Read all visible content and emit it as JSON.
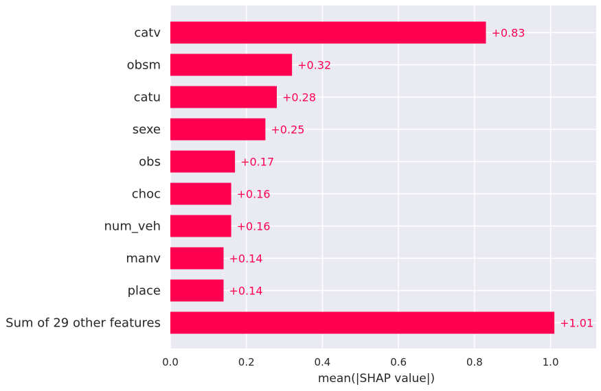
{
  "chart_data": {
    "type": "bar",
    "orientation": "horizontal",
    "categories": [
      "catv",
      "obsm",
      "catu",
      "sexe",
      "obs",
      "choc",
      "num_veh",
      "manv",
      "place",
      "Sum of 29 other features"
    ],
    "values": [
      0.83,
      0.32,
      0.28,
      0.25,
      0.17,
      0.16,
      0.16,
      0.14,
      0.14,
      1.01
    ],
    "value_labels": [
      "+0.83",
      "+0.32",
      "+0.28",
      "+0.25",
      "+0.17",
      "+0.16",
      "+0.16",
      "+0.14",
      "+0.14",
      "+1.01"
    ],
    "xlabel": "mean(|SHAP value|)",
    "xlim": [
      0,
      1.12
    ],
    "xticks": [
      0.0,
      0.2,
      0.4,
      0.6,
      0.8,
      1.0
    ],
    "xtick_labels": [
      "0.0",
      "0.2",
      "0.4",
      "0.6",
      "0.8",
      "1.0"
    ],
    "grid": true,
    "bar_color": "#ff0051",
    "label_color": "#ff0051",
    "background_color": "#eaeaf2"
  }
}
